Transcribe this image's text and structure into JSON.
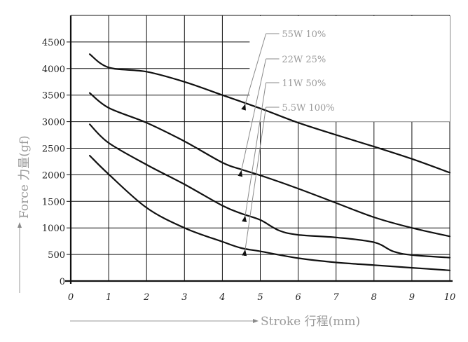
{
  "chart_data": {
    "type": "line",
    "xlabel": "Stroke 行程(mm)",
    "ylabel": "Force 力量(gf)",
    "xlim": [
      0,
      10
    ],
    "ylim": [
      0,
      5000
    ],
    "x_ticks": [
      0,
      1,
      2,
      3,
      4,
      5,
      6,
      7,
      8,
      9,
      10
    ],
    "y_ticks": [
      0,
      500,
      1000,
      1500,
      2000,
      2500,
      3000,
      3500,
      4000,
      4500
    ],
    "grid": true,
    "legend_position": "top-right",
    "series": [
      {
        "name": "55W 10%",
        "x": [
          0.5,
          1,
          2,
          3,
          4,
          5,
          6,
          7,
          8,
          9,
          10
        ],
        "y": [
          4270,
          4020,
          3940,
          3750,
          3500,
          3250,
          2980,
          2750,
          2530,
          2300,
          2040
        ]
      },
      {
        "name": "22W 25%",
        "x": [
          0.5,
          1,
          2,
          3,
          4,
          4.5,
          5,
          6,
          7,
          8,
          9,
          10
        ],
        "y": [
          3540,
          3260,
          2980,
          2630,
          2230,
          2100,
          1990,
          1740,
          1470,
          1200,
          1000,
          840
        ]
      },
      {
        "name": "11W 50%",
        "x": [
          0.5,
          1,
          2,
          3,
          4,
          4.5,
          5,
          5.5,
          6,
          7,
          8,
          8.5,
          9,
          10
        ],
        "y": [
          2950,
          2600,
          2190,
          1820,
          1420,
          1270,
          1150,
          950,
          870,
          820,
          730,
          560,
          490,
          440
        ]
      },
      {
        "name": "5.5W 100%",
        "x": [
          0.5,
          1,
          2,
          3,
          4,
          4.5,
          5,
          6,
          7,
          8,
          9,
          10
        ],
        "y": [
          2360,
          2010,
          1380,
          1000,
          740,
          620,
          560,
          430,
          350,
          300,
          250,
          200
        ]
      }
    ]
  }
}
